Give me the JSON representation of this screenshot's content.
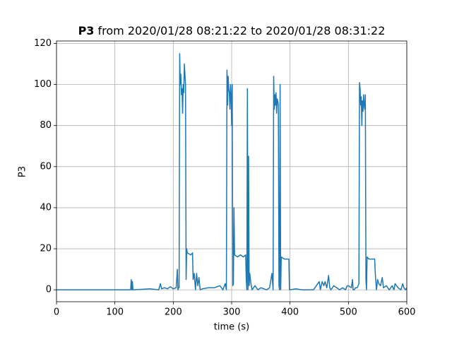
{
  "chart_data": {
    "type": "line",
    "title": [
      "P3",
      "from 2020/01/28 08:21:22 to 2020/01/28 08:31:22"
    ],
    "x_label": "time (s)",
    "y_label": "P3",
    "xlim": [
      0,
      600
    ],
    "ylim": [
      -5.8,
      121.2
    ],
    "xticks": [
      0,
      100,
      200,
      300,
      400,
      500,
      600
    ],
    "yticks": [
      0,
      20,
      40,
      60,
      80,
      100,
      120
    ],
    "grid": true,
    "series": [
      {
        "color": "#1f77b4",
        "x": [
          0,
          127,
          128,
          129,
          130,
          131,
          132,
          160,
          175,
          178,
          180,
          185,
          190,
          195,
          200,
          205,
          207,
          208,
          209,
          210,
          211,
          212,
          213,
          214,
          215,
          216,
          217,
          218,
          219,
          220,
          221,
          222,
          223,
          224,
          230,
          233,
          234,
          236,
          238,
          240,
          242,
          244,
          246,
          250,
          260,
          270,
          280,
          285,
          289,
          291,
          292,
          293,
          294,
          295,
          296,
          297,
          298,
          299,
          300,
          301,
          302,
          303,
          304,
          305,
          310,
          315,
          320,
          324,
          325,
          326,
          327,
          328,
          329,
          330,
          331,
          333,
          335,
          340,
          345,
          350,
          355,
          360,
          365,
          369,
          371,
          372,
          373,
          374,
          375,
          376,
          377,
          378,
          379,
          380,
          381,
          382,
          383,
          384,
          385,
          390,
          398,
          399,
          400,
          410,
          420,
          440,
          450,
          452,
          455,
          458,
          460,
          463,
          466,
          468,
          470,
          475,
          480,
          485,
          490,
          495,
          498,
          500,
          505,
          507,
          508,
          510,
          512,
          515,
          518,
          519,
          520,
          521,
          522,
          523,
          524,
          525,
          526,
          527,
          528,
          529,
          530,
          531,
          532,
          535,
          540,
          545,
          546,
          548,
          550,
          552,
          555,
          558,
          560,
          565,
          570,
          575,
          578,
          580,
          585,
          590,
          593,
          595,
          598,
          600
        ],
        "values": [
          0,
          0,
          5,
          0,
          4,
          0,
          0,
          0.5,
          0,
          3,
          0.5,
          1,
          0.5,
          1.5,
          0.5,
          1,
          10,
          0,
          1,
          1,
          115,
          100,
          105,
          95,
          98,
          86,
          100,
          96,
          110,
          105,
          100,
          5,
          20,
          18,
          17,
          18,
          5,
          8,
          0,
          8,
          2,
          6,
          0,
          0.5,
          1,
          1,
          2,
          0,
          3,
          0,
          107,
          90,
          104,
          98,
          96,
          88,
          100,
          95,
          80,
          100,
          2,
          3,
          40,
          17,
          16,
          17,
          16,
          17,
          5,
          0,
          98,
          0,
          65,
          2,
          8,
          3,
          0,
          2,
          0,
          1,
          0.5,
          0,
          1,
          8,
          0,
          104,
          88,
          95,
          90,
          96,
          86,
          93,
          92,
          90,
          2,
          0,
          100,
          0,
          16,
          15,
          15,
          0,
          0,
          0.5,
          0,
          0,
          4,
          0,
          4,
          2,
          4,
          1,
          7,
          1,
          0,
          2,
          1,
          0,
          1,
          0,
          2,
          2,
          1,
          5,
          0,
          0,
          1,
          1,
          3,
          101,
          98,
          90,
          94,
          80,
          92,
          87,
          95,
          90,
          88,
          95,
          5,
          0,
          16,
          15,
          15,
          15,
          8,
          0,
          5,
          3,
          2,
          6,
          1,
          2,
          0,
          2,
          0,
          3,
          1,
          0,
          3,
          1,
          0,
          1
        ]
      }
    ]
  }
}
